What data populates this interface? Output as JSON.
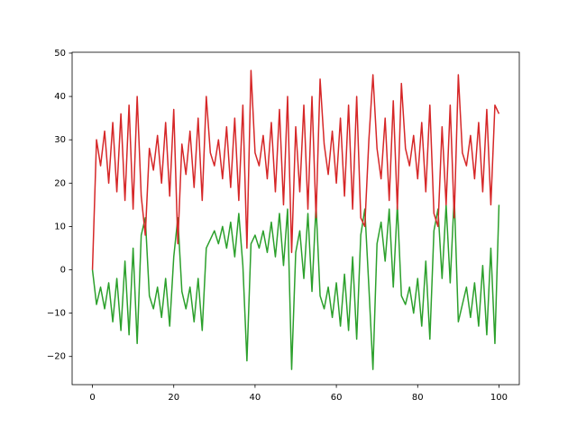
{
  "chart_data": {
    "type": "line",
    "x": [
      0,
      1,
      2,
      3,
      4,
      5,
      6,
      7,
      8,
      9,
      10,
      11,
      12,
      13,
      14,
      15,
      16,
      17,
      18,
      19,
      20,
      21,
      22,
      23,
      24,
      25,
      26,
      27,
      28,
      29,
      30,
      31,
      32,
      33,
      34,
      35,
      36,
      37,
      38,
      39,
      40,
      41,
      42,
      43,
      44,
      45,
      46,
      47,
      48,
      49,
      50,
      51,
      52,
      53,
      54,
      55,
      56,
      57,
      58,
      59,
      60,
      61,
      62,
      63,
      64,
      65,
      66,
      67,
      68,
      69,
      70,
      71,
      72,
      73,
      74,
      75,
      76,
      77,
      78,
      79,
      80,
      81,
      82,
      83,
      84,
      85,
      86,
      87,
      88,
      89,
      90,
      91,
      92,
      93,
      94,
      95,
      96,
      97,
      98,
      99,
      100
    ],
    "series": [
      {
        "color": "#2ca02c",
        "values": [
          0,
          -8,
          -4,
          -9,
          -3,
          -12,
          -2,
          -14,
          2,
          -15,
          5,
          -17,
          8,
          12,
          -6,
          -9,
          -4,
          -11,
          -2,
          -13,
          3,
          12,
          -5,
          -9,
          -4,
          -12,
          -2,
          -14,
          5,
          7,
          9,
          6,
          10,
          5,
          11,
          3,
          13,
          1,
          -21,
          6,
          8,
          5,
          9,
          4,
          11,
          3,
          13,
          1,
          14,
          -23,
          4,
          9,
          -2,
          13,
          -5,
          15,
          -6,
          -9,
          -4,
          -11,
          -3,
          -13,
          -1,
          -14,
          3,
          -16,
          8,
          14,
          -4,
          -23,
          6,
          11,
          2,
          14,
          -4,
          15,
          -6,
          -8,
          -4,
          -10,
          -2,
          -13,
          2,
          -16,
          9,
          14,
          -2,
          15,
          -3,
          17,
          -12,
          -8,
          -4,
          -11,
          -3,
          -13,
          1,
          -15,
          5,
          -17,
          15
        ]
      },
      {
        "color": "#d62728",
        "values": [
          0,
          30,
          24,
          32,
          20,
          34,
          18,
          36,
          16,
          38,
          14,
          40,
          17,
          8,
          28,
          23,
          31,
          20,
          34,
          17,
          37,
          6,
          29,
          22,
          32,
          19,
          35,
          16,
          40,
          27,
          24,
          30,
          21,
          33,
          19,
          35,
          16,
          38,
          5,
          46,
          27,
          24,
          31,
          21,
          34,
          18,
          37,
          15,
          40,
          4,
          33,
          18,
          38,
          14,
          40,
          12,
          44,
          29,
          22,
          32,
          20,
          35,
          17,
          38,
          14,
          40,
          12,
          10,
          30,
          45,
          28,
          21,
          35,
          16,
          39,
          14,
          43,
          28,
          24,
          31,
          21,
          34,
          18,
          38,
          13,
          10,
          33,
          15,
          38,
          12,
          45,
          27,
          24,
          31,
          21,
          34,
          18,
          37,
          15,
          38,
          36
        ]
      }
    ],
    "xlim": [
      -5,
      105
    ],
    "ylim": [
      -26.5,
      50.2
    ],
    "xticks": [
      0,
      20,
      40,
      60,
      80,
      100
    ],
    "yticks": [
      {
        "value": -20,
        "label": "−20"
      },
      {
        "value": -10,
        "label": "−10"
      },
      0,
      10,
      20,
      30,
      40,
      50
    ],
    "grid": false
  }
}
